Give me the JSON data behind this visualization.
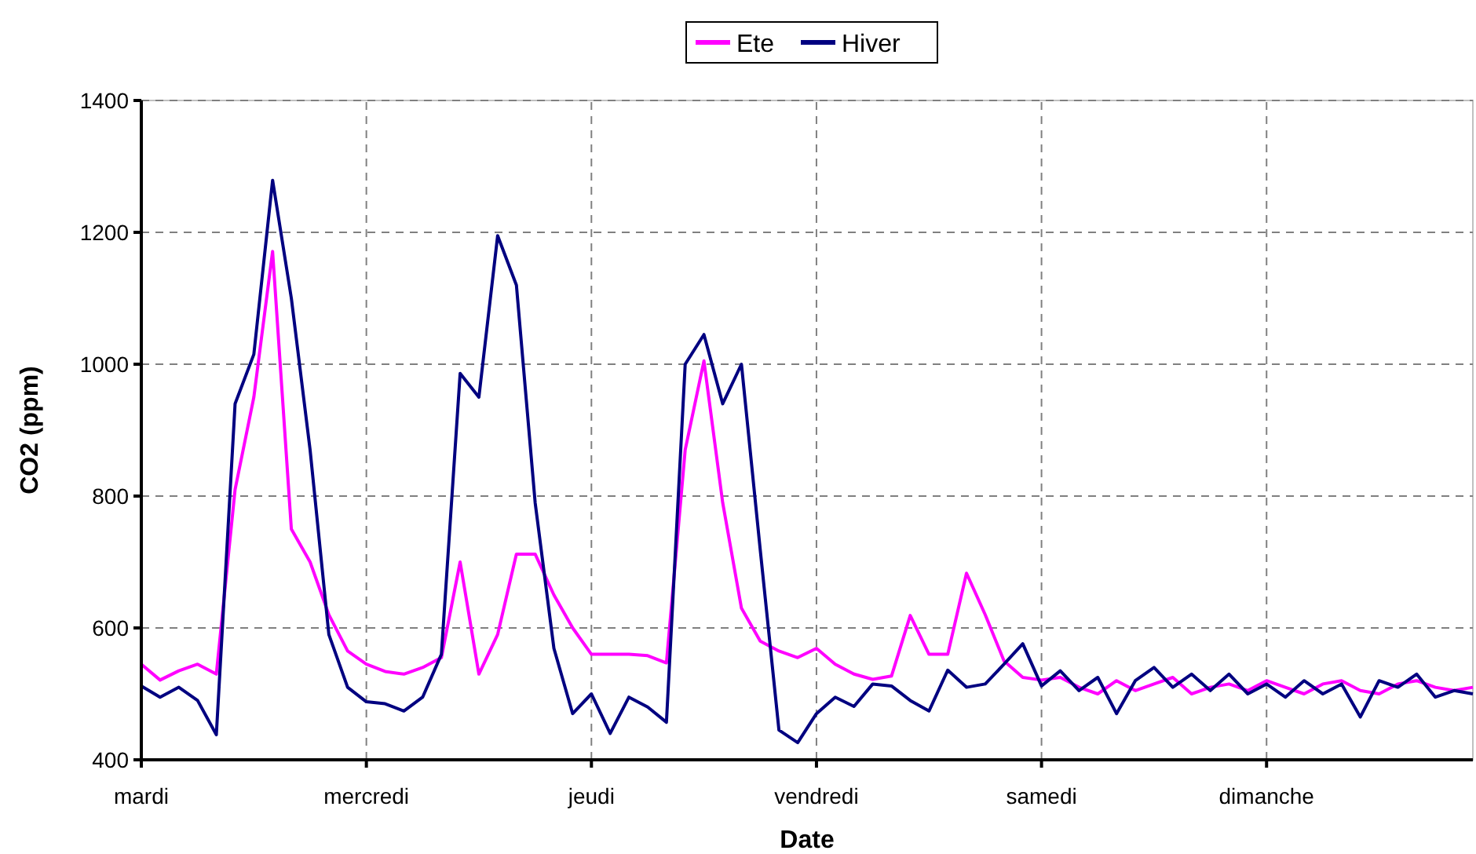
{
  "chart_data": {
    "type": "line",
    "xlabel": "Date",
    "ylabel": "CO2 (ppm)",
    "ylim": [
      400,
      1400
    ],
    "categories": [
      "mardi",
      null,
      null,
      null,
      null,
      null,
      null,
      null,
      null,
      null,
      null,
      null,
      "mercredi",
      null,
      null,
      null,
      null,
      null,
      null,
      null,
      null,
      null,
      null,
      null,
      "jeudi",
      null,
      null,
      null,
      null,
      null,
      null,
      null,
      null,
      null,
      null,
      null,
      "vendredi",
      null,
      null,
      null,
      null,
      null,
      null,
      null,
      null,
      null,
      null,
      null,
      "samedi",
      null,
      null,
      null,
      null,
      null,
      null,
      null,
      null,
      null,
      null,
      null,
      "dimanche",
      null,
      null,
      null,
      null,
      null,
      null,
      null,
      null,
      null,
      null,
      null
    ],
    "yticks": [
      400,
      600,
      800,
      1000,
      1200,
      1400
    ],
    "grid": true,
    "legend": "top",
    "line_style": "solid",
    "series": [
      {
        "name": "Ete",
        "color": "#ff00ff",
        "values": [
          545,
          521,
          535,
          545,
          530,
          810,
          950,
          1171,
          750,
          700,
          620,
          565,
          545,
          534,
          530,
          540,
          555,
          700,
          530,
          590,
          712,
          712,
          650,
          600,
          560,
          560,
          560,
          558,
          547,
          870,
          1005,
          790,
          630,
          580,
          565,
          555,
          569,
          545,
          530,
          522,
          527,
          619,
          560,
          560,
          683,
          620,
          550,
          525,
          521,
          525,
          510,
          500,
          520,
          505,
          515,
          525,
          500,
          510,
          515,
          505,
          520,
          510,
          500,
          515,
          520,
          505,
          500,
          515,
          520,
          510,
          505,
          510
        ]
      },
      {
        "name": "Hiver",
        "color": "#000080",
        "values": [
          512,
          495,
          510,
          490,
          438,
          940,
          1015,
          1279,
          1100,
          870,
          590,
          510,
          488,
          485,
          474,
          495,
          560,
          986,
          950,
          1195,
          1120,
          790,
          569,
          470,
          500,
          440,
          495,
          480,
          457,
          1000,
          1045,
          940,
          1000,
          719,
          445,
          426,
          470,
          495,
          481,
          515,
          512,
          490,
          474,
          536,
          510,
          515,
          545,
          576,
          512,
          535,
          505,
          525,
          470,
          520,
          540,
          510,
          530,
          505,
          530,
          500,
          515,
          495,
          520,
          500,
          515,
          465,
          520,
          510,
          530,
          495,
          505,
          500
        ]
      }
    ]
  }
}
